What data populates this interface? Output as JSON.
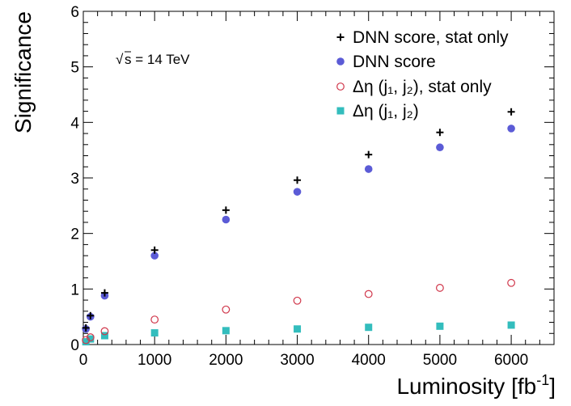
{
  "chart_data": {
    "type": "scatter",
    "xlabel": "Luminosity [fb",
    "xlabel_sup": "-1",
    "xlabel_close": "]",
    "ylabel": "Significance",
    "xlim": [
      0,
      6600
    ],
    "ylim": [
      0,
      6
    ],
    "x_ticks": [
      "0",
      "1000",
      "2000",
      "3000",
      "4000",
      "5000",
      "6000"
    ],
    "y_ticks": [
      "0",
      "1",
      "2",
      "3",
      "4",
      "5",
      "6"
    ],
    "annotation": "s = 14 TeV",
    "legend_position": "top-right",
    "series": [
      {
        "name": "DNN score, stat only",
        "marker": "plus",
        "color": "#000000",
        "x": [
          36,
          100,
          300,
          1000,
          2000,
          3000,
          4000,
          5000,
          6000
        ],
        "y": [
          0.3,
          0.52,
          0.93,
          1.7,
          2.42,
          2.96,
          3.42,
          3.82,
          4.19
        ]
      },
      {
        "name": "DNN score",
        "marker": "circle",
        "color": "#5b5bd6",
        "x": [
          36,
          100,
          300,
          1000,
          2000,
          3000,
          4000,
          5000,
          6000
        ],
        "y": [
          0.28,
          0.5,
          0.88,
          1.6,
          2.25,
          2.75,
          3.16,
          3.55,
          3.89
        ]
      },
      {
        "name": "Δη (j₁, j₂), stat only",
        "marker": "open-circle",
        "color": "#d0364a",
        "x": [
          36,
          100,
          300,
          1000,
          2000,
          3000,
          4000,
          5000,
          6000
        ],
        "y": [
          0.08,
          0.13,
          0.24,
          0.45,
          0.63,
          0.79,
          0.91,
          1.02,
          1.11
        ]
      },
      {
        "name": "Δη (j₁, j₂)",
        "marker": "square",
        "color": "#33bdbd",
        "x": [
          36,
          100,
          300,
          1000,
          2000,
          3000,
          4000,
          5000,
          6000
        ],
        "y": [
          0.05,
          0.1,
          0.16,
          0.21,
          0.25,
          0.28,
          0.31,
          0.33,
          0.35
        ]
      }
    ]
  }
}
